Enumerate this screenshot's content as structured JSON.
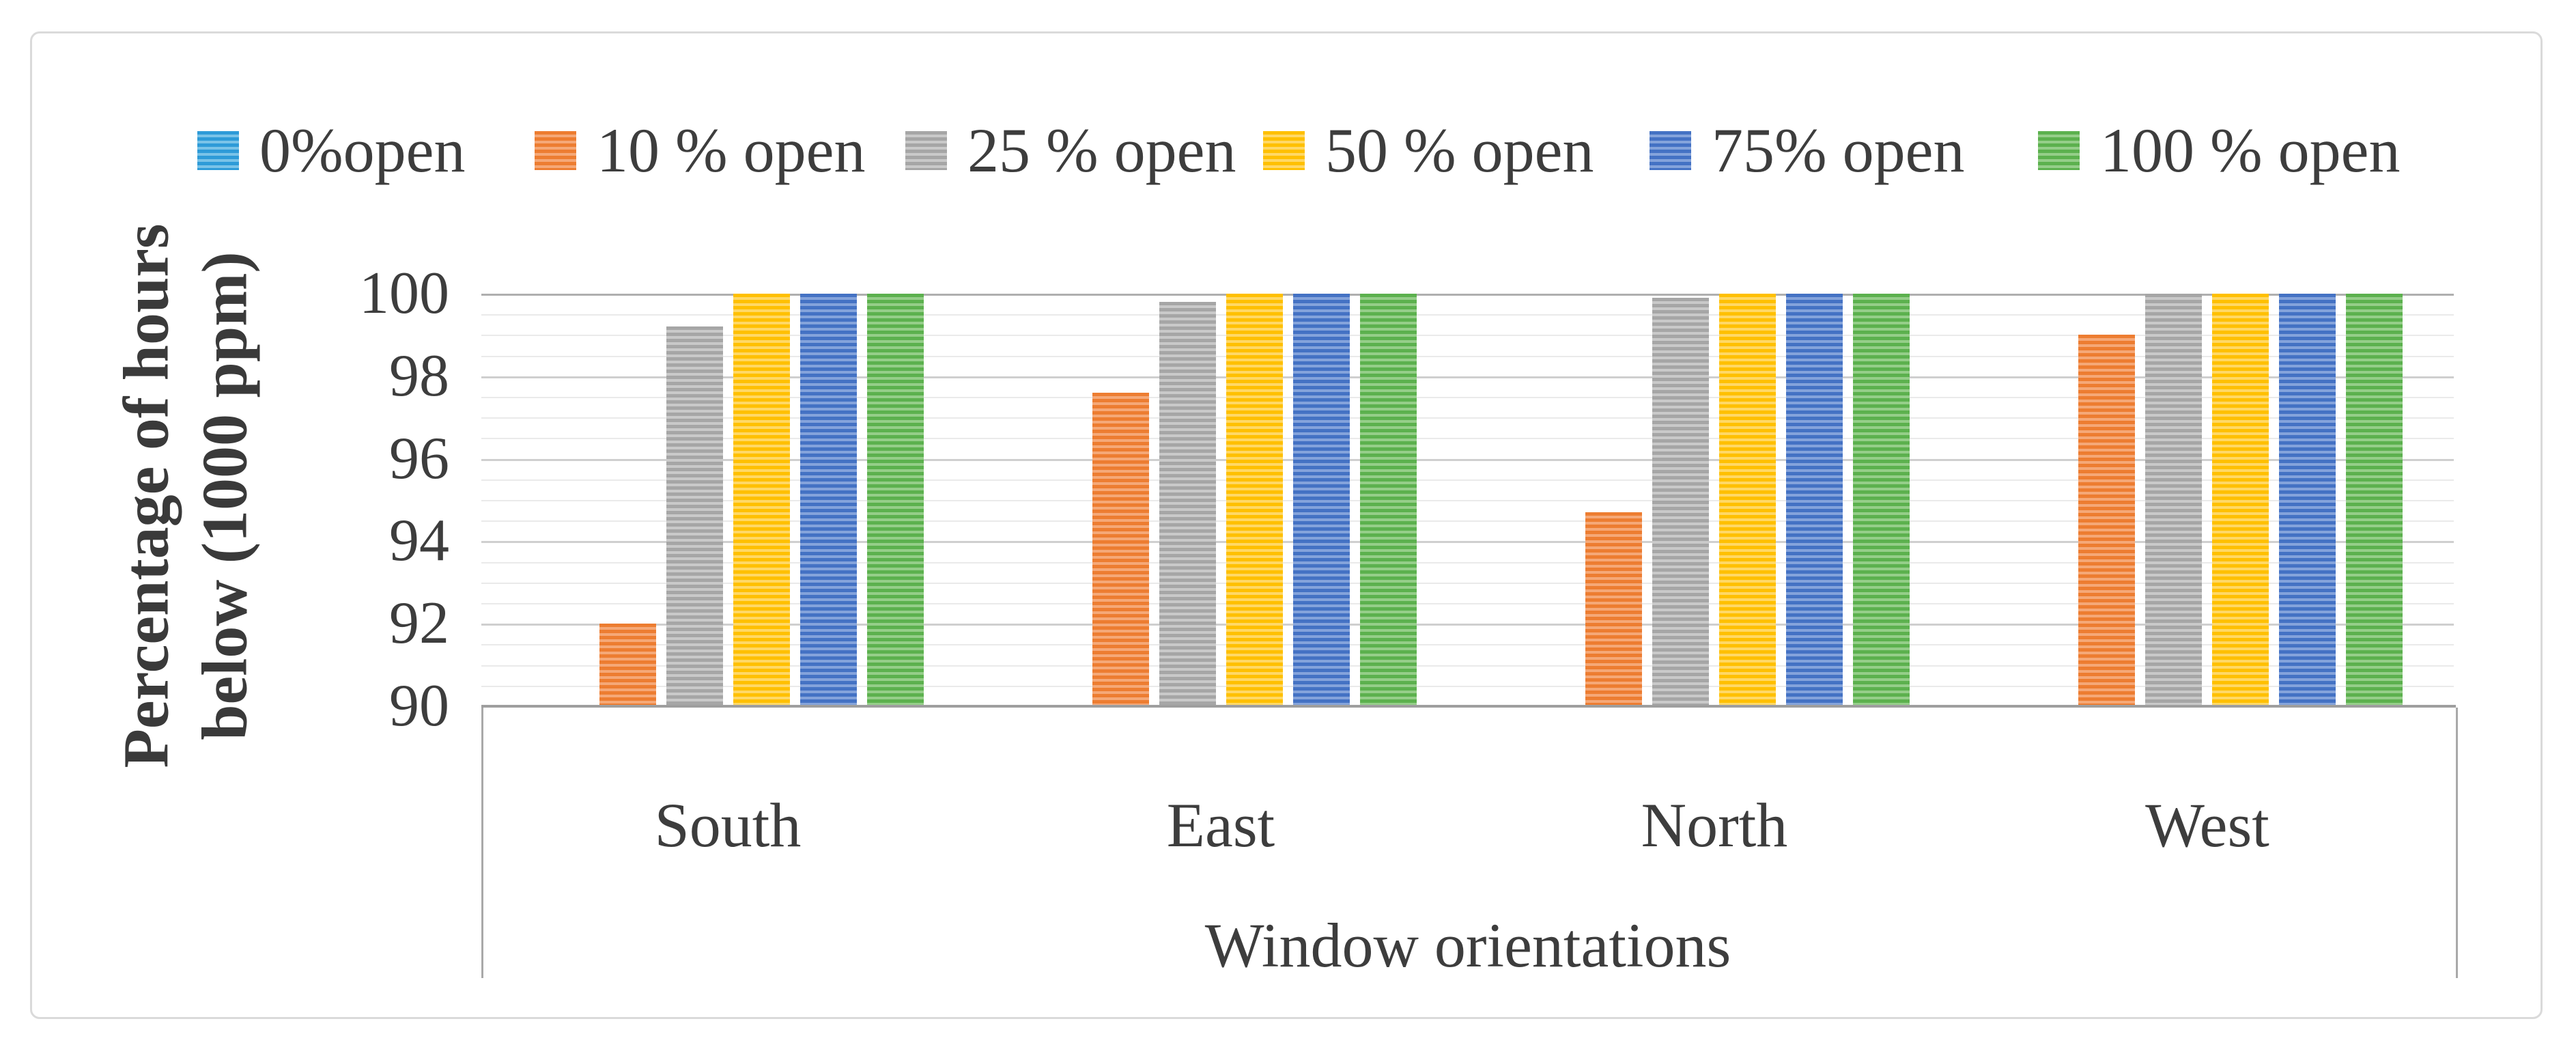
{
  "chart_data": {
    "type": "bar",
    "categories": [
      "South",
      "East",
      "North",
      "West"
    ],
    "series": [
      {
        "name": "0%open",
        "color": "#2E9BD8",
        "stripe_color": "#7AC3E8",
        "values": [
          null,
          null,
          null,
          null
        ],
        "note": "bars below axis minimum of 90, not visible in plot"
      },
      {
        "name": "10 % open",
        "color": "#ED7D31",
        "stripe_color": "#F5A877",
        "values": [
          92.0,
          97.6,
          94.7,
          99.0
        ]
      },
      {
        "name": "25 % open",
        "color": "#A6A6A6",
        "stripe_color": "#C9C9C9",
        "values": [
          99.2,
          99.8,
          99.9,
          100
        ]
      },
      {
        "name": "50 % open",
        "color": "#FFC000",
        "stripe_color": "#FFD866",
        "values": [
          100,
          100,
          100,
          100
        ]
      },
      {
        "name": "75% open",
        "color": "#4472C4",
        "stripe_color": "#84A3DB",
        "values": [
          100,
          100,
          100,
          100
        ]
      },
      {
        "name": "100 % open",
        "color": "#5CB14E",
        "stripe_color": "#95CE89",
        "values": [
          100,
          100,
          100,
          100
        ]
      }
    ],
    "xlabel": "Window orientations",
    "ylabel_lines": [
      "Percentage of hours",
      "below (1000 ppm)"
    ],
    "ylim": [
      90,
      100
    ],
    "yticks": [
      100,
      98,
      96,
      94,
      92,
      90
    ],
    "minor_gridline_step": 0.5,
    "major_gridline_step": 2,
    "legend_position": "top",
    "grid": true,
    "bar_pattern": "horizontal-stripes"
  }
}
